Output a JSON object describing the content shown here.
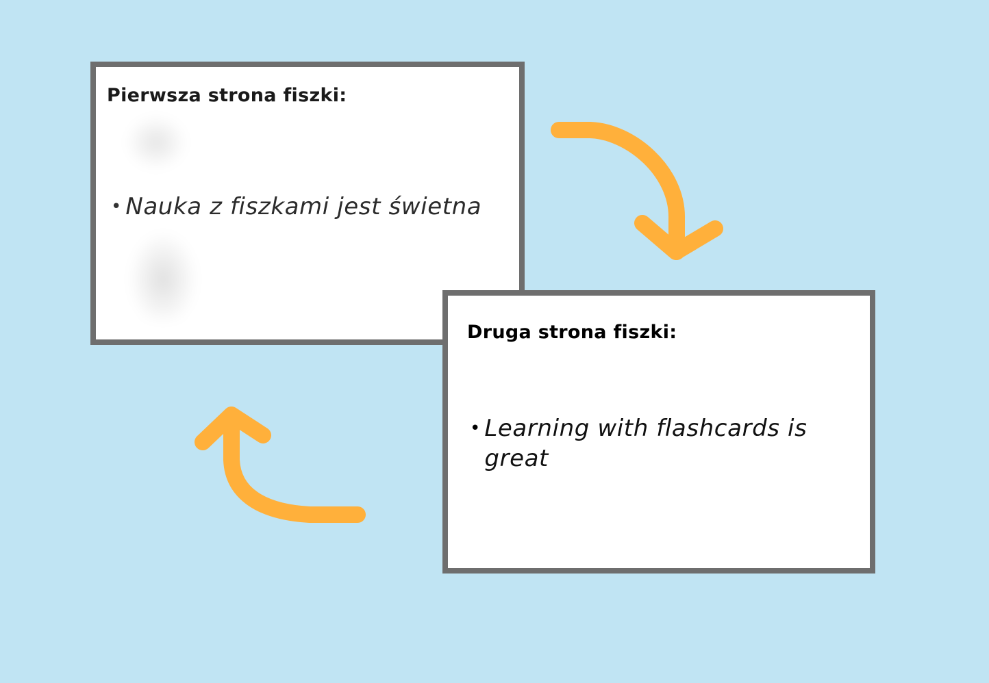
{
  "front_card": {
    "title": "Pierwsza strona fiszki:",
    "bullet": "Nauka z fiszkami jest świetna"
  },
  "back_card": {
    "title": "Druga strona fiszki:",
    "bullet": "Learning with flashcards is great"
  },
  "colors": {
    "background": "#c0e4f3",
    "card_border": "#6e6e6e",
    "arrow": "#ffb03b"
  }
}
